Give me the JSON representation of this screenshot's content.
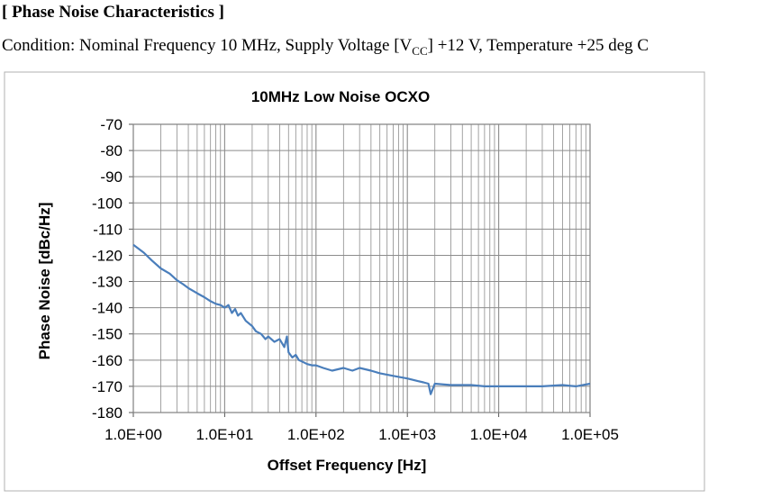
{
  "heading": "[ Phase Noise Characteristics ]",
  "condition": {
    "prefix": "Condition: Nominal Frequency 10 MHz, Supply Voltage [V",
    "subscript": "CC",
    "suffix": "] +12 V, Temperature +25 deg C"
  },
  "colors": {
    "series": "#4a7ebb",
    "grid": "#8c8c8c",
    "frame": "#b0b0b0"
  },
  "chart_data": {
    "type": "line",
    "title": "10MHz Low Noise OCXO",
    "xlabel": "Offset Frequency [Hz]",
    "ylabel": "Phase Noise [dBc/Hz]",
    "xscale": "log",
    "xlim": [
      1,
      100000
    ],
    "ylim": [
      -180,
      -70
    ],
    "xticks": [
      1,
      10,
      100,
      1000,
      10000,
      100000
    ],
    "xtick_labels": [
      "1.0E+00",
      "1.0E+01",
      "1.0E+02",
      "1.0E+03",
      "1.0E+04",
      "1.0E+05"
    ],
    "yticks": [
      -70,
      -80,
      -90,
      -100,
      -110,
      -120,
      -130,
      -140,
      -150,
      -160,
      -170,
      -180
    ],
    "ytick_labels": [
      "-70",
      "-80",
      "-90",
      "-100",
      "-110",
      "-120",
      "-130",
      "-140",
      "-150",
      "-160",
      "-170",
      "-180"
    ],
    "grid": true,
    "legend": "none",
    "series": [
      {
        "x": [
          1,
          1.3,
          1.6,
          2,
          2.5,
          3,
          3.5,
          4,
          5,
          6,
          7,
          8,
          9,
          10,
          11,
          12,
          13,
          14,
          15,
          17,
          20,
          22,
          25,
          28,
          30,
          35,
          40,
          45,
          48,
          50,
          55,
          60,
          65,
          70,
          80,
          90,
          100,
          120,
          150,
          200,
          250,
          300,
          400,
          500,
          700,
          1000,
          1300,
          1500,
          1700,
          1800,
          2000,
          3000,
          5000,
          7000,
          10000,
          20000,
          30000,
          50000,
          70000,
          100000
        ],
        "y": [
          -116,
          -119,
          -122,
          -125,
          -127,
          -129.5,
          -131,
          -132.5,
          -134.5,
          -136,
          -137.5,
          -138.5,
          -139,
          -140,
          -139,
          -142,
          -140.5,
          -143,
          -142,
          -145,
          -147,
          -149,
          -150,
          -152,
          -151,
          -153,
          -152,
          -155,
          -151,
          -157,
          -159,
          -158,
          -160,
          -160.5,
          -161.5,
          -162,
          -162,
          -163,
          -164,
          -163,
          -164,
          -163,
          -164,
          -165,
          -166,
          -167,
          -168,
          -168.5,
          -169,
          -173,
          -169,
          -169.5,
          -169.5,
          -170,
          -170,
          -170,
          -170,
          -169.5,
          -170,
          -169
        ]
      }
    ]
  }
}
